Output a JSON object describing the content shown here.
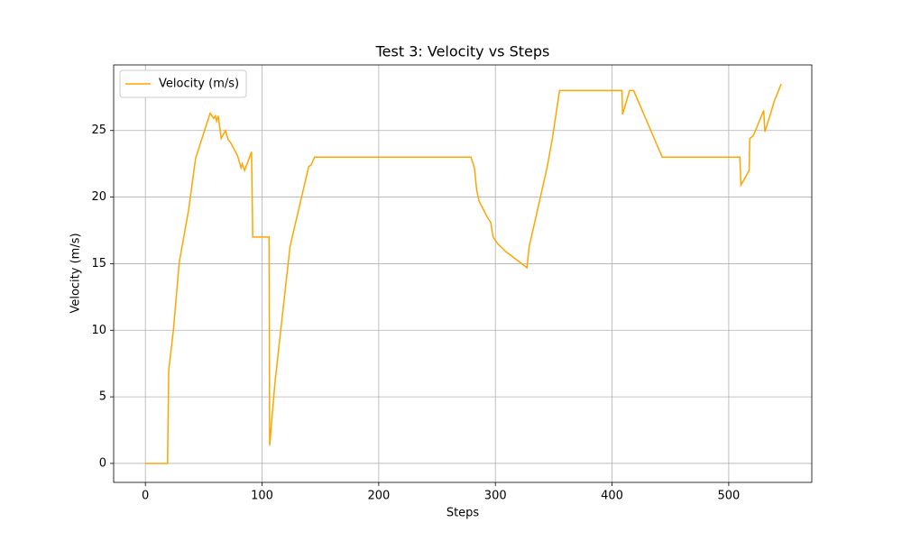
{
  "chart_data": {
    "type": "line",
    "title": "Test 3: Velocity vs Steps",
    "xlabel": "Steps",
    "ylabel": "Velocity (m/s)",
    "x": [
      0,
      19,
      20,
      24,
      29,
      37,
      43,
      55.5,
      58.6,
      60,
      61,
      62.4,
      65,
      68.6,
      71,
      73,
      79,
      82,
      83,
      85,
      91,
      92,
      106,
      106.5,
      111,
      116,
      124,
      132,
      140,
      142,
      145,
      279,
      282,
      284,
      286,
      293,
      296,
      298,
      302,
      309,
      324,
      327,
      329,
      336,
      344.5,
      349,
      355,
      408.5,
      409,
      415,
      418.5,
      443,
      509.5,
      510.5,
      517.5,
      518,
      521,
      530,
      531,
      536,
      539,
      545
    ],
    "series": [
      {
        "name": "Velocity (m/s)",
        "color": "#ffa500",
        "values": [
          0,
          0,
          7,
          10,
          15.1,
          19,
          22.9,
          26.3,
          25.9,
          26.1,
          25.7,
          26.1,
          24.4,
          25.0,
          24.3,
          24.1,
          23.1,
          22.2,
          22.5,
          22.0,
          23.4,
          17,
          17,
          1.35,
          6,
          10,
          16.3,
          19.3,
          22.3,
          22.4,
          23,
          23,
          22.2,
          20.5,
          19.7,
          18.5,
          18.1,
          17,
          16.5,
          15.9,
          14.9,
          14.7,
          16.3,
          19,
          22.3,
          24.5,
          28,
          28,
          26.2,
          28,
          28,
          23,
          23,
          20.9,
          22,
          24.4,
          24.6,
          26.5,
          24.9,
          26.3,
          27.2,
          28.5
        ]
      }
    ],
    "xlim": [
      -27.2,
      571.2
    ],
    "xticks": [
      0,
      100,
      200,
      300,
      400,
      500
    ],
    "ylim": [
      -1.425,
      29.925
    ],
    "yticks": [
      0,
      5,
      10,
      15,
      20,
      25
    ],
    "grid": true,
    "legend": "upper left"
  }
}
